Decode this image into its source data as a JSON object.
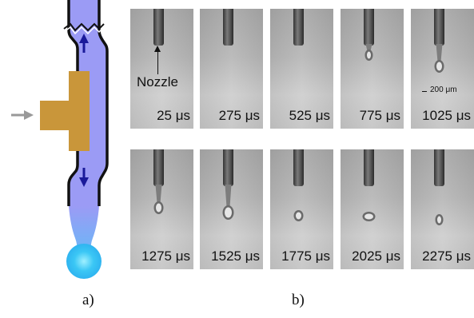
{
  "colors": {
    "fluid": "#9b9bf5",
    "piezo": "#c9963a",
    "arrow_blue": "#1a1a9a",
    "droplet": "#37c6f2",
    "input_arrow": "#999999"
  },
  "panel_a": {
    "caption": "a)",
    "icons": [
      "input-arrow-icon",
      "flow-up-arrow-icon",
      "flow-down-arrow-icon",
      "break-mark-icon"
    ]
  },
  "panel_b": {
    "caption": "b)",
    "nozzle_label": "Nozzle",
    "scale_label": "200 μm",
    "frames": [
      {
        "time": "25 μs"
      },
      {
        "time": "275 μs"
      },
      {
        "time": "525 μs"
      },
      {
        "time": "775 μs"
      },
      {
        "time": "1025 μs"
      },
      {
        "time": "1275 μs"
      },
      {
        "time": "1525 μs"
      },
      {
        "time": "1775 μs"
      },
      {
        "time": "2025 μs"
      },
      {
        "time": "2275 μs"
      }
    ]
  }
}
